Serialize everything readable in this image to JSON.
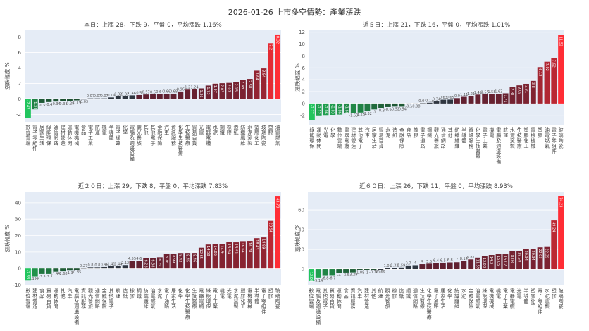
{
  "title": "2026-01-26 上市多空情勢：產業漲跌",
  "colors": {
    "plot_bg": "#e5ecf6",
    "grid": "#ffffff",
    "neg_strong": "#22c55e",
    "neg_weak": "#1f4a30",
    "neutral": "#2f3640",
    "pos_weak": "#5a2030",
    "pos_strong": "#ff2d35"
  },
  "chart_data": [
    {
      "type": "bar",
      "title": "本日：上漲 28，下跌 9，平盤 0，平均漲跌 1.16%",
      "ylabel": "漲跌幅度 %",
      "ylim": [
        -2.96,
        8.86
      ],
      "yticks": [
        -2,
        0,
        2,
        4,
        6,
        8
      ],
      "grid": true,
      "categories": [
        "數位雲端",
        "電子零組件",
        "居家生活",
        "綠能環保",
        "通信網路",
        "建材營造",
        "運動休閒",
        "電機機械",
        "食品",
        "電子工業",
        "航運",
        "機電",
        "半導體",
        "電子通路",
        "化學",
        "電腦及週邊設備",
        "觀光餐旅",
        "其他",
        "其他電子",
        "金融保險",
        "汽車",
        "資訊服務",
        "化學生技醫療",
        "生技醫療",
        "貿易百貨",
        "光電",
        "電器電纜",
        "水泥",
        "鋼鐵",
        "橡膠",
        "造紙",
        "紡織纖維",
        "水泥窯製",
        "塑膠化工",
        "玻璃陶瓷",
        "塑膠",
        "油電燃氣"
      ],
      "values": [
        -2.42,
        -1.34,
        -0.5,
        -0.4,
        -0.34,
        -0.31,
        -0.29,
        -0.19,
        -0.03,
        0.07,
        0.07,
        0.07,
        0.19,
        0.32,
        0.32,
        0.46,
        0.5,
        0.57,
        0.6,
        0.64,
        0.66,
        0.68,
        0.96,
        1.2,
        1.24,
        1.36,
        1.73,
        1.97,
        2.03,
        2.07,
        2.15,
        2.48,
        2.58,
        3.64,
        3.94,
        7.2,
        8.32
      ]
    },
    {
      "type": "bar",
      "title": "近５日：上漲 21，下跌 16，平盤 0，平均漲跌 1.01%",
      "ylabel": "漲跌幅度 %",
      "ylim": [
        -3.57,
        12.32
      ],
      "yticks": [
        -2,
        0,
        2,
        4,
        6,
        8,
        10,
        12
      ],
      "grid": true,
      "categories": [
        "綠能環保",
        "運動休閒",
        "光電",
        "化學",
        "數位雲端",
        "電器電纜",
        "建材營造",
        "其他電子",
        "汽車",
        "居家生活",
        "貿易百貨",
        "水泥",
        "造紙",
        "金融保險",
        "食品",
        "橡膠",
        "電子通路",
        "鋼鐵",
        "觀光餐旅",
        "通信網路",
        "其他",
        "紡織纖維",
        "半導體",
        "資訊服務",
        "化學生技醫療",
        "電子工業",
        "機電",
        "電腦及週邊設備",
        "航運",
        "水泥窯製",
        "生技醫療",
        "塑膠化工",
        "電機機械",
        "塑膠",
        "油電燃氣",
        "電子零組件",
        "玻璃陶瓷"
      ],
      "values": [
        -2.77,
        -2.12,
        -2.06,
        -2.03,
        -1.86,
        -1.68,
        -1.63,
        -1.53,
        -1.32,
        -1.0,
        -0.8,
        -0.6,
        -0.53,
        -0.54,
        -0.1,
        -0.08,
        0.04,
        0.13,
        0.34,
        0.63,
        0.65,
        0.9,
        1.11,
        1.21,
        1.49,
        1.55,
        1.58,
        1.63,
        1.71,
        2.81,
        3.05,
        3.31,
        3.8,
        6.12,
        7.02,
        7.62,
        11.52
      ]
    },
    {
      "type": "bar",
      "title": "近２０日：上漲 29，下跌 8，平盤 0，平均漲跌 7.83%",
      "ylabel": "漲跌幅度 %",
      "ylim": [
        -10.2,
        46.8
      ],
      "yticks": [
        -10,
        0,
        10,
        20,
        30,
        40
      ],
      "grid": true,
      "categories": [
        "數位雲端",
        "建材營造",
        "食品",
        "貿易百貨",
        "運動休閒",
        "其他",
        "汽車",
        "電腦及週邊設備",
        "資訊服務",
        "觀光餐旅",
        "通信網路",
        "金融保險",
        "其他電子",
        "航運",
        "造紙",
        "橡膠",
        "鋼鐵",
        "紡織纖維",
        "油電燃氣",
        "水泥",
        "電子通路",
        "居家生活",
        "化學",
        "化學生技醫療",
        "生技醫療",
        "電器電纜",
        "綠能環保",
        "電子工業",
        "機電",
        "光電",
        "水泥窯製",
        "塑膠化工",
        "電機機械",
        "半導體",
        "電子零組件",
        "塑膠",
        "玻璃陶瓷"
      ],
      "values": [
        -7.33,
        -4.86,
        -3.3,
        -3.3,
        -1.93,
        -1.68,
        -1.3,
        -0.85,
        0.27,
        0.8,
        0.8,
        0.96,
        1.41,
        1.44,
        2.12,
        4.55,
        4.6,
        6.28,
        6.38,
        6.79,
        8.76,
        8.99,
        9.42,
        9.45,
        9.46,
        12.65,
        14.58,
        14.86,
        14.9,
        15.94,
        15.91,
        16.64,
        16.78,
        18.43,
        18.89,
        28.94,
        43.78
      ]
    },
    {
      "type": "bar",
      "title": "近６０日：上漲 26，下跌 11，平盤 0，平均漲跌 8.93%",
      "ylabel": "漲跌幅度 %",
      "ylim": [
        -16.4,
        78.6
      ],
      "yticks": [
        0,
        20,
        40,
        60
      ],
      "grid": true,
      "categories": [
        "數位雲端",
        "電腦及週邊設備",
        "其他電子",
        "貿易百貨",
        "運動休閒",
        "食品",
        "資訊服務",
        "汽車",
        "建材營造",
        "其他",
        "航運",
        "觀光餐旅",
        "橡膠",
        "造紙",
        "鋼鐵",
        "通信網路",
        "生技醫療",
        "化學生技醫療",
        "電子通路",
        "居家生活",
        "化學",
        "紡織纖維",
        "水泥",
        "金融保險",
        "油電燃氣",
        "綠能環保",
        "電機機械",
        "機電",
        "電子工業",
        "電器電纜",
        "光電",
        "半導體",
        "塑膠化工",
        "電子零組件",
        "水泥窯製",
        "塑膠",
        "玻璃陶瓷"
      ],
      "values": [
        -12.08,
        -9.14,
        -6.8,
        -6.7,
        -4.0,
        -3.5,
        -3.29,
        -1.08,
        -1.0,
        -0.76,
        -0.69,
        1.01,
        1.32,
        1.59,
        3.7,
        4.0,
        5.0,
        5.5,
        6.4,
        6.5,
        6.8,
        7.0,
        8.14,
        9.81,
        11.59,
        13.08,
        14.3,
        15.05,
        15.02,
        18.03,
        18.58,
        20.34,
        20.34,
        22.03,
        22.39,
        49.24,
        74.23
      ]
    }
  ]
}
